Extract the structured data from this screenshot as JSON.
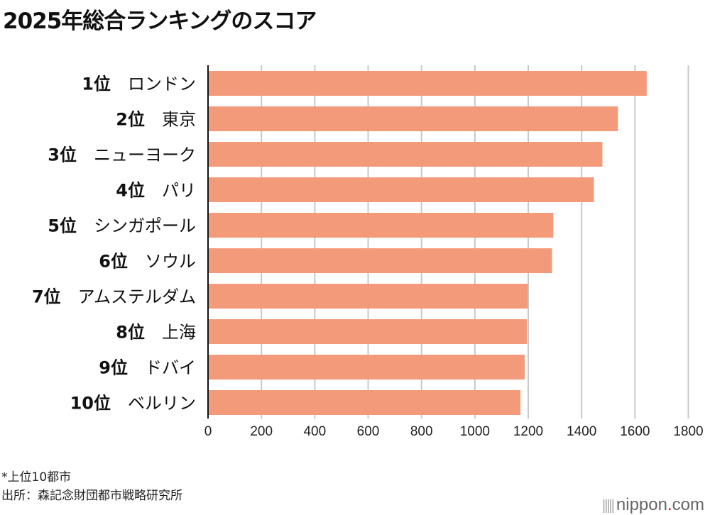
{
  "chart_data": {
    "type": "bar",
    "orientation": "horizontal",
    "title": "2025年総合ランキングのスコア",
    "categories": [
      "1位　ロンドン",
      "2位　東京",
      "3位　ニューヨーク",
      "4位　パリ",
      "5位　シンガポール",
      "6位　ソウル",
      "7位　アムステルダム",
      "8位　上海",
      "9位　ドバイ",
      "10位　ベルリン"
    ],
    "ranks": [
      "1位",
      "2位",
      "3位",
      "4位",
      "5位",
      "6位",
      "7位",
      "8位",
      "9位",
      "10位"
    ],
    "cities": [
      "ロンドン",
      "東京",
      "ニューヨーク",
      "パリ",
      "シンガポール",
      "ソウル",
      "アムステルダム",
      "上海",
      "ドバイ",
      "ベルリン"
    ],
    "values": [
      1644,
      1536,
      1478,
      1446,
      1294,
      1289,
      1198,
      1195,
      1187,
      1171
    ],
    "xlim": [
      0,
      1800
    ],
    "xticks": [
      0,
      200,
      400,
      600,
      800,
      1000,
      1200,
      1400,
      1600,
      1800
    ],
    "grid": true,
    "bar_color": "#f29a7a",
    "xlabel": "",
    "ylabel": ""
  },
  "notes": {
    "note1": "*上位10都市",
    "source": "出所：森記念財団都市戦略研究所"
  },
  "logo": {
    "text": "nippon",
    "dot": ".",
    "suffix": "com"
  }
}
